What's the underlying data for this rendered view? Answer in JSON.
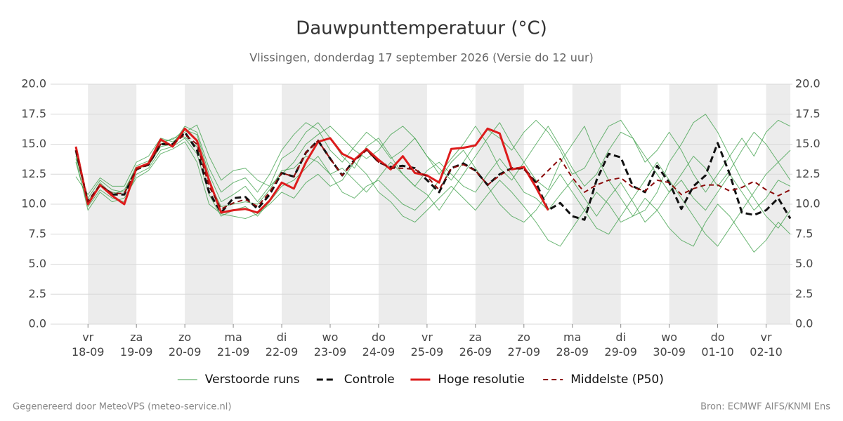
{
  "chart_data": {
    "type": "line",
    "title": "Dauwpunttemperatuur (°C)",
    "subtitle": "Vlissingen, donderdag 17 september 2026 (Versie do 12 uur)",
    "footer_left": "Gegenereerd door MeteoVPS (meteo-service.nl)",
    "footer_right": "Bron: ECMWF AIFS/KNMI Ens",
    "categories": [
      null,
      "vr\n18-09",
      null,
      null,
      null,
      "za\n19-09",
      null,
      null,
      null,
      "zo\n20-09",
      null,
      null,
      null,
      "ma\n21-09",
      null,
      null,
      null,
      "di\n22-09",
      null,
      null,
      null,
      "wo\n23-09",
      null,
      null,
      null,
      "do\n24-09",
      null,
      null,
      null,
      "vr\n25-09",
      null,
      null,
      null,
      "za\n26-09",
      null,
      null,
      null,
      "zo\n27-09",
      null,
      null,
      null,
      "ma\n28-09",
      null,
      null,
      null,
      "di\n29-09",
      null,
      null,
      null,
      "wo\n30-09",
      null,
      null,
      null,
      "do\n01-10",
      null,
      null,
      null,
      "vr\n02-10",
      null,
      null
    ],
    "ylim": [
      0,
      20
    ],
    "yticks": [
      {
        "value": 0,
        "label": "0.0"
      },
      {
        "value": 2.5,
        "label": "2.5"
      },
      {
        "value": 5,
        "label": "5.0"
      },
      {
        "value": 7.5,
        "label": "7.5"
      },
      {
        "value": 10,
        "label": "10.0"
      },
      {
        "value": 12.5,
        "label": "12.5"
      },
      {
        "value": 15,
        "label": "15.0"
      },
      {
        "value": 17.5,
        "label": "17.5"
      },
      {
        "value": 20,
        "label": "20.0"
      }
    ],
    "grid": true,
    "legend": "bottom",
    "series": [
      {
        "name": "Verstoorde runs",
        "color": "#3a9e46",
        "width": 1,
        "members": [
          [
            14.0,
            10.5,
            12.0,
            11.2,
            11.0,
            13.2,
            13.6,
            15.2,
            15.4,
            16.2,
            15.8,
            12.5,
            10.2,
            10.8,
            11.5,
            10.2,
            11.5,
            13.8,
            14.5,
            16.0,
            16.8,
            15.5,
            14.0,
            13.0,
            14.8,
            15.5,
            14.0,
            12.5,
            11.5,
            10.8,
            9.5,
            11.0,
            12.5,
            14.0,
            15.5,
            16.8,
            15.0,
            13.5,
            12.0,
            11.2,
            13.5,
            15.0,
            16.5,
            14.0,
            12.0,
            10.5,
            9.0,
            9.5,
            11.0,
            13.5,
            15.0,
            16.8,
            17.5,
            16.0,
            14.0,
            12.0,
            10.5,
            9.0,
            8.0,
            9.5
          ],
          [
            13.5,
            9.8,
            11.2,
            10.5,
            10.2,
            12.5,
            13.0,
            14.5,
            14.8,
            15.5,
            14.2,
            10.8,
            9.0,
            9.5,
            9.8,
            9.0,
            10.2,
            11.5,
            12.0,
            13.0,
            14.0,
            12.5,
            11.0,
            10.5,
            11.5,
            12.0,
            11.0,
            10.0,
            9.5,
            10.5,
            12.0,
            13.5,
            14.5,
            13.0,
            11.5,
            10.0,
            9.0,
            8.5,
            9.5,
            11.0,
            12.5,
            11.0,
            9.5,
            8.0,
            7.5,
            9.0,
            10.5,
            12.0,
            13.5,
            12.0,
            10.5,
            9.0,
            7.5,
            6.5,
            8.0,
            9.5,
            11.0,
            12.5,
            13.5,
            12.0
          ],
          [
            14.2,
            10.0,
            11.8,
            10.8,
            11.2,
            13.0,
            13.2,
            14.8,
            15.0,
            16.5,
            16.0,
            13.0,
            11.0,
            11.8,
            12.2,
            11.0,
            12.5,
            14.5,
            15.8,
            16.8,
            16.2,
            14.5,
            13.5,
            14.8,
            16.0,
            15.2,
            13.8,
            14.5,
            15.5,
            14.0,
            12.5,
            13.8,
            15.0,
            16.5,
            15.0,
            13.0,
            12.0,
            13.5,
            15.0,
            16.5,
            14.8,
            13.0,
            11.5,
            12.5,
            14.5,
            16.0,
            15.5,
            14.0,
            12.5,
            11.0,
            12.5,
            14.0,
            13.0,
            11.5,
            12.8,
            14.5,
            16.0,
            15.0,
            13.5,
            14.5
          ],
          [
            13.8,
            9.5,
            11.0,
            10.2,
            10.5,
            12.2,
            12.8,
            14.2,
            14.6,
            15.2,
            13.5,
            10.0,
            9.2,
            9.0,
            8.8,
            9.2,
            10.0,
            11.0,
            10.5,
            11.8,
            12.5,
            11.5,
            12.0,
            13.5,
            12.5,
            11.0,
            10.2,
            9.0,
            8.5,
            9.5,
            10.5,
            11.5,
            10.5,
            9.5,
            10.8,
            12.0,
            11.0,
            9.8,
            8.5,
            7.0,
            6.5,
            8.0,
            9.5,
            11.0,
            10.0,
            8.5,
            9.0,
            10.5,
            9.5,
            8.0,
            7.0,
            6.5,
            8.5,
            10.0,
            9.0,
            7.5,
            6.0,
            7.0,
            8.5,
            7.5
          ],
          [
            12.3,
            10.8,
            12.2,
            11.5,
            11.5,
            13.5,
            14.0,
            15.5,
            15.2,
            16.0,
            16.6,
            14.0,
            12.0,
            12.8,
            13.0,
            12.0,
            11.5,
            12.5,
            13.5,
            15.0,
            15.8,
            16.5,
            15.5,
            14.5,
            13.8,
            14.5,
            15.8,
            16.5,
            15.5,
            14.0,
            13.0,
            12.0,
            13.5,
            15.0,
            16.2,
            15.5,
            14.5,
            16.0,
            17.0,
            16.0,
            14.5,
            12.5,
            13.0,
            14.8,
            16.5,
            17.0,
            15.5,
            13.5,
            14.5,
            16.0,
            14.5,
            12.5,
            11.0,
            12.5,
            14.0,
            15.5,
            14.0,
            16.0,
            17.0,
            16.5
          ],
          [
            14.5,
            10.3,
            11.5,
            11.0,
            10.8,
            12.8,
            13.5,
            15.0,
            15.5,
            15.6,
            14.8,
            11.8,
            9.8,
            10.0,
            10.2,
            10.0,
            11.2,
            12.8,
            13.0,
            14.0,
            13.5,
            12.5,
            13.0,
            12.0,
            11.0,
            12.2,
            13.5,
            12.5,
            11.5,
            12.8,
            13.5,
            12.5,
            11.5,
            11.0,
            12.5,
            13.8,
            12.5,
            11.0,
            10.5,
            9.5,
            10.8,
            12.0,
            10.5,
            9.0,
            10.5,
            11.8,
            10.2,
            8.5,
            9.5,
            11.0,
            12.0,
            10.5,
            9.5,
            11.0,
            12.5,
            11.0,
            9.5,
            10.5,
            12.0,
            11.5
          ]
        ]
      },
      {
        "name": "Controle",
        "color": "#111111",
        "width": 3,
        "dash": true,
        "values": [
          14.5,
          10.2,
          11.6,
          10.8,
          10.8,
          12.9,
          13.3,
          15.0,
          15.0,
          16.0,
          14.5,
          11.0,
          9.3,
          10.5,
          10.6,
          9.6,
          10.8,
          12.6,
          12.3,
          14.3,
          15.3,
          13.8,
          12.4,
          13.7,
          14.6,
          13.5,
          13.1,
          13.2,
          13.0,
          12.0,
          11.0,
          13.0,
          13.4,
          12.8,
          11.6,
          12.5,
          13.0,
          13.0,
          11.8,
          9.5,
          10.1,
          9.0,
          8.7,
          12.0,
          14.2,
          13.9,
          11.5,
          11.0,
          13.2,
          11.8,
          9.6,
          11.5,
          12.4,
          15.1,
          12.5,
          9.3,
          9.1,
          9.5,
          10.5,
          8.8
        ]
      },
      {
        "name": "Hoge resolutie",
        "color": "#dd1c1c",
        "width": 3,
        "values": [
          14.8,
          10.0,
          11.6,
          10.7,
          10.0,
          13.0,
          13.4,
          15.4,
          14.8,
          16.3,
          15.3,
          12.0,
          9.3,
          9.5,
          9.6,
          9.3,
          10.3,
          11.8,
          11.3,
          13.5,
          15.2,
          15.5,
          14.2,
          13.7,
          14.6,
          13.7,
          12.9,
          14.0,
          12.6,
          12.4,
          11.8,
          14.6,
          14.7,
          14.9,
          16.3,
          15.9,
          12.9,
          13.1,
          11.4,
          9.5,
          null,
          null,
          null,
          null,
          null,
          null,
          null,
          null,
          null,
          null,
          null,
          null,
          null,
          null,
          null,
          null,
          null,
          null,
          null,
          null
        ]
      },
      {
        "name": "Middelste (P50)",
        "color": "#8b0a0a",
        "width": 2,
        "dash": true,
        "values": [
          14.5,
          10.2,
          11.6,
          10.9,
          10.9,
          12.9,
          13.3,
          15.0,
          15.0,
          15.8,
          15.0,
          11.5,
          9.6,
          10.1,
          10.4,
          9.8,
          11.0,
          12.6,
          12.3,
          14.3,
          15.3,
          13.8,
          12.4,
          13.6,
          14.5,
          13.5,
          13.0,
          13.0,
          12.9,
          12.3,
          11.2,
          13.0,
          13.3,
          12.8,
          11.6,
          12.4,
          13.0,
          12.9,
          11.8,
          12.8,
          13.8,
          12.2,
          11.0,
          11.6,
          12.0,
          12.2,
          11.4,
          11.1,
          12.0,
          11.8,
          10.8,
          11.3,
          11.6,
          11.6,
          11.1,
          11.4,
          11.9,
          11.2,
          10.7,
          11.2
        ]
      }
    ]
  }
}
